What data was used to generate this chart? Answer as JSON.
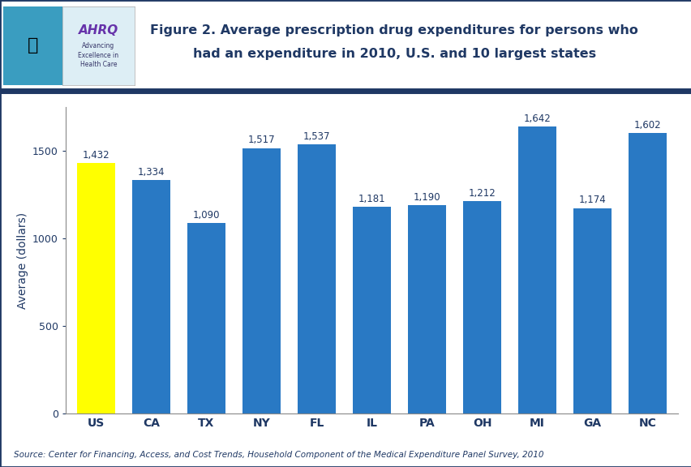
{
  "categories": [
    "US",
    "CA",
    "TX",
    "NY",
    "FL",
    "IL",
    "PA",
    "OH",
    "MI",
    "GA",
    "NC"
  ],
  "values": [
    1432,
    1334,
    1090,
    1517,
    1537,
    1181,
    1190,
    1212,
    1642,
    1174,
    1602
  ],
  "bar_colors": [
    "#FFFF00",
    "#2979C4",
    "#2979C4",
    "#2979C4",
    "#2979C4",
    "#2979C4",
    "#2979C4",
    "#2979C4",
    "#2979C4",
    "#2979C4",
    "#2979C4"
  ],
  "labels": [
    "1,432",
    "1,334",
    "1,090",
    "1,517",
    "1,537",
    "1,181",
    "1,190",
    "1,212",
    "1,642",
    "1,174",
    "1,602"
  ],
  "title_line1": "Figure 2. Average prescription drug expenditures for persons who",
  "title_line2": "had an expenditure in 2010, U.S. and 10 largest states",
  "ylabel": "Average (dollars)",
  "ylim": [
    0,
    1750
  ],
  "yticks": [
    0,
    500,
    1000,
    1500
  ],
  "source_text": "Source: Center for Financing, Access, and Cost Trends, Household Component of the Medical Expenditure Panel Survey, 2010",
  "title_color": "#1F3864",
  "axis_color": "#333333",
  "label_color": "#1F3864",
  "tick_color": "#1F3864",
  "background_color": "#FFFFFF",
  "divider_color": "#1F3864",
  "source_color": "#1F3864",
  "logo_teal": "#3A9DC0",
  "logo_white_bg": "#DDEEF6"
}
